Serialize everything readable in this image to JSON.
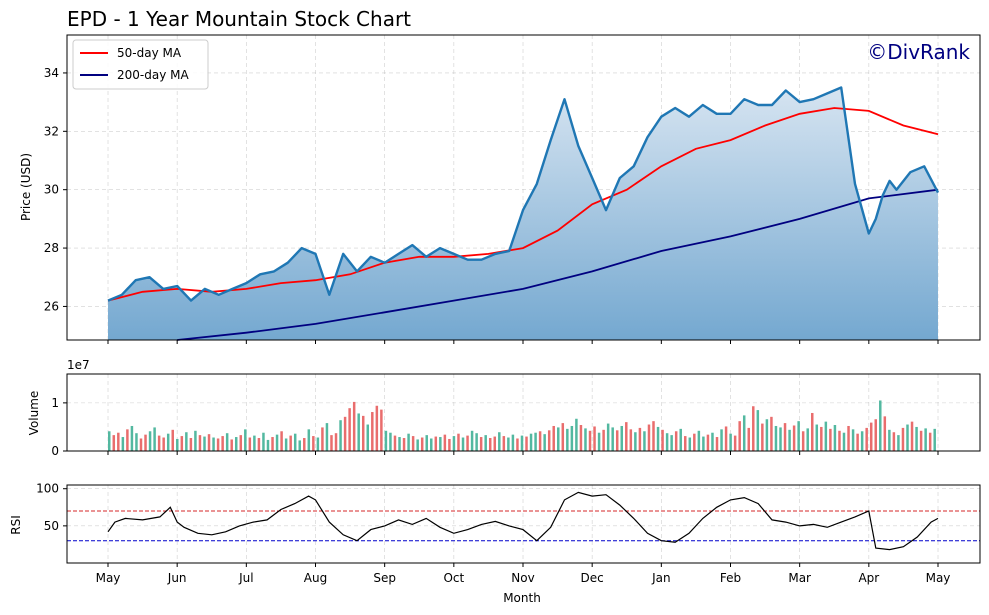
{
  "chart_data": {
    "type": "line",
    "title": "EPD - 1 Year Mountain Stock Chart",
    "watermark": "©DivRank",
    "xlabel": "Month",
    "x_ticks": [
      "May",
      "Jun",
      "Jul",
      "Aug",
      "Sep",
      "Oct",
      "Nov",
      "Dec",
      "Jan",
      "Feb",
      "Mar",
      "Apr",
      "May"
    ],
    "price_panel": {
      "ylabel": "Price (USD)",
      "ylim": [
        24.85,
        35.3
      ],
      "yticks": [
        "26",
        "28",
        "30",
        "32",
        "34"
      ],
      "grid": true,
      "legend_position": "top-left",
      "price_color": "#1f77b4",
      "fill_top_color": "#d6e4f1",
      "fill_bottom_color": "#74a8d0",
      "price_series": {
        "x": [
          0,
          0.2,
          0.4,
          0.6,
          0.8,
          1.0,
          1.2,
          1.4,
          1.6,
          1.8,
          2.0,
          2.2,
          2.4,
          2.6,
          2.8,
          3.0,
          3.2,
          3.4,
          3.6,
          3.8,
          4.0,
          4.2,
          4.4,
          4.6,
          4.8,
          5.0,
          5.2,
          5.4,
          5.6,
          5.8,
          6.0,
          6.2,
          6.4,
          6.6,
          6.8,
          7.0,
          7.2,
          7.4,
          7.6,
          7.8,
          8.0,
          8.2,
          8.4,
          8.6,
          8.8,
          9.0,
          9.2,
          9.4,
          9.6,
          9.8,
          10.0,
          10.2,
          10.4,
          10.6,
          10.8,
          11.0,
          11.1,
          11.2,
          11.3,
          11.4,
          11.6,
          11.8,
          12.0
        ],
        "y": [
          26.2,
          26.4,
          26.9,
          27.0,
          26.6,
          26.7,
          26.2,
          26.6,
          26.4,
          26.6,
          26.8,
          27.1,
          27.2,
          27.5,
          28.0,
          27.8,
          26.4,
          27.8,
          27.2,
          27.7,
          27.5,
          27.8,
          28.1,
          27.7,
          28.0,
          27.8,
          27.6,
          27.6,
          27.8,
          27.9,
          29.3,
          30.2,
          31.7,
          33.1,
          31.5,
          30.4,
          29.3,
          30.4,
          30.8,
          31.8,
          32.5,
          32.8,
          32.5,
          32.9,
          32.6,
          32.6,
          33.1,
          32.9,
          32.9,
          33.4,
          33.0,
          33.1,
          33.3,
          33.5,
          30.2,
          28.5,
          29.0,
          29.8,
          30.3,
          30.0,
          30.6,
          30.8,
          29.9
        ]
      },
      "ma50": {
        "name": "50-day MA",
        "color": "#ff0000",
        "x": [
          0,
          0.5,
          1,
          1.5,
          2,
          2.5,
          3,
          3.5,
          4,
          4.5,
          5,
          5.5,
          6,
          6.5,
          7,
          7.5,
          8,
          8.5,
          9,
          9.5,
          10,
          10.5,
          11,
          11.5,
          12
        ],
        "y": [
          26.2,
          26.5,
          26.6,
          26.5,
          26.6,
          26.8,
          26.9,
          27.1,
          27.5,
          27.7,
          27.7,
          27.8,
          28.0,
          28.6,
          29.5,
          30.0,
          30.8,
          31.4,
          31.7,
          32.2,
          32.6,
          32.8,
          32.7,
          32.2,
          31.9
        ]
      },
      "ma200": {
        "name": "200-day MA",
        "color": "#000080",
        "x": [
          1,
          2,
          3,
          4,
          5,
          6,
          7,
          8,
          9,
          10,
          11,
          12
        ],
        "y": [
          24.85,
          25.1,
          25.4,
          25.8,
          26.2,
          26.6,
          27.2,
          27.9,
          28.4,
          29.0,
          29.7,
          30.0
        ]
      }
    },
    "volume_panel": {
      "ylabel": "Volume",
      "multiplier": "1e7",
      "ylim": [
        0,
        1.6
      ],
      "yticks": [
        "0",
        "1"
      ],
      "up_color": "#53b8a0",
      "down_color": "#e96d6d",
      "values": [
        0.41,
        0.33,
        0.38,
        0.29,
        0.45,
        0.52,
        0.37,
        0.26,
        0.34,
        0.41,
        0.49,
        0.32,
        0.28,
        0.36,
        0.44,
        0.25,
        0.31,
        0.39,
        0.27,
        0.42,
        0.33,
        0.3,
        0.35,
        0.28,
        0.26,
        0.31,
        0.37,
        0.24,
        0.29,
        0.33,
        0.45,
        0.28,
        0.32,
        0.27,
        0.38,
        0.23,
        0.29,
        0.34,
        0.41,
        0.26,
        0.32,
        0.36,
        0.22,
        0.27,
        0.45,
        0.31,
        0.28,
        0.49,
        0.58,
        0.33,
        0.37,
        0.64,
        0.71,
        0.89,
        1.02,
        0.78,
        0.73,
        0.55,
        0.81,
        0.94,
        0.86,
        0.42,
        0.38,
        0.32,
        0.29,
        0.27,
        0.36,
        0.31,
        0.24,
        0.28,
        0.33,
        0.26,
        0.3,
        0.29,
        0.34,
        0.25,
        0.31,
        0.36,
        0.28,
        0.32,
        0.42,
        0.37,
        0.29,
        0.33,
        0.27,
        0.3,
        0.39,
        0.31,
        0.28,
        0.34,
        0.26,
        0.32,
        0.3,
        0.36,
        0.38,
        0.41,
        0.35,
        0.43,
        0.52,
        0.49,
        0.58,
        0.46,
        0.52,
        0.67,
        0.54,
        0.47,
        0.42,
        0.51,
        0.38,
        0.44,
        0.57,
        0.49,
        0.43,
        0.52,
        0.6,
        0.45,
        0.39,
        0.48,
        0.41,
        0.55,
        0.62,
        0.5,
        0.44,
        0.37,
        0.33,
        0.41,
        0.46,
        0.31,
        0.28,
        0.36,
        0.42,
        0.3,
        0.34,
        0.38,
        0.29,
        0.45,
        0.51,
        0.36,
        0.32,
        0.62,
        0.74,
        0.48,
        0.93,
        0.85,
        0.57,
        0.66,
        0.71,
        0.52,
        0.49,
        0.58,
        0.44,
        0.53,
        0.62,
        0.41,
        0.47,
        0.79,
        0.55,
        0.5,
        0.61,
        0.46,
        0.54,
        0.42,
        0.38,
        0.52,
        0.45,
        0.36,
        0.41,
        0.48,
        0.59,
        0.66,
        1.05,
        0.72,
        0.44,
        0.39,
        0.33,
        0.48,
        0.55,
        0.61,
        0.5,
        0.42,
        0.47,
        0.38,
        0.46
      ],
      "colors": [
        "u",
        "d",
        "d",
        "u",
        "d",
        "u",
        "u",
        "d",
        "d",
        "u",
        "u",
        "d",
        "d",
        "u",
        "d",
        "u",
        "d",
        "u",
        "d",
        "u",
        "d",
        "u",
        "d",
        "u",
        "d",
        "d",
        "u",
        "d",
        "u",
        "d",
        "u",
        "d",
        "u",
        "d",
        "u",
        "u",
        "d",
        "u",
        "d",
        "u",
        "d",
        "u",
        "u",
        "d",
        "u",
        "d",
        "u",
        "d",
        "u",
        "d",
        "d",
        "u",
        "d",
        "d",
        "d",
        "u",
        "d",
        "u",
        "d",
        "d",
        "d",
        "u",
        "u",
        "d",
        "u",
        "d",
        "u",
        "d",
        "u",
        "d",
        "u",
        "u",
        "d",
        "u",
        "d",
        "d",
        "u",
        "d",
        "u",
        "d",
        "u",
        "u",
        "d",
        "u",
        "d",
        "d",
        "u",
        "d",
        "u",
        "u",
        "d",
        "u",
        "d",
        "u",
        "u",
        "d",
        "u",
        "d",
        "d",
        "u",
        "d",
        "u",
        "u",
        "u",
        "d",
        "u",
        "d",
        "d",
        "u",
        "d",
        "u",
        "u",
        "d",
        "u",
        "d",
        "d",
        "u",
        "d",
        "u",
        "d",
        "d",
        "u",
        "d",
        "u",
        "u",
        "d",
        "u",
        "d",
        "u",
        "d",
        "u",
        "u",
        "d",
        "u",
        "d",
        "u",
        "d",
        "u",
        "d",
        "d",
        "u",
        "d",
        "d",
        "u",
        "d",
        "u",
        "d",
        "u",
        "u",
        "d",
        "u",
        "d",
        "u",
        "d",
        "u",
        "d",
        "u",
        "d",
        "u",
        "d",
        "u",
        "d",
        "u",
        "d",
        "u",
        "d",
        "u",
        "d",
        "d",
        "d",
        "u",
        "d",
        "u",
        "d",
        "u",
        "d",
        "u",
        "d",
        "u",
        "d",
        "u",
        "d",
        "u"
      ]
    },
    "rsi_panel": {
      "ylabel": "RSI",
      "ylim": [
        0,
        105
      ],
      "yticks": [
        "50",
        "100"
      ],
      "overbought": 70,
      "oversold": 30,
      "overbought_color": "#d62728",
      "oversold_color": "#0000cc",
      "x": [
        0,
        0.1,
        0.25,
        0.5,
        0.75,
        0.9,
        1.0,
        1.1,
        1.3,
        1.5,
        1.7,
        1.9,
        2.1,
        2.3,
        2.5,
        2.7,
        2.9,
        3.0,
        3.2,
        3.4,
        3.6,
        3.8,
        4.0,
        4.2,
        4.4,
        4.6,
        4.8,
        5.0,
        5.2,
        5.4,
        5.6,
        5.8,
        6.0,
        6.2,
        6.4,
        6.6,
        6.8,
        7.0,
        7.2,
        7.4,
        7.6,
        7.8,
        8.0,
        8.2,
        8.4,
        8.6,
        8.8,
        9.0,
        9.2,
        9.4,
        9.6,
        9.8,
        10.0,
        10.2,
        10.4,
        10.6,
        10.8,
        11.0,
        11.1,
        11.3,
        11.5,
        11.7,
        11.9,
        12.0
      ],
      "values": [
        42,
        55,
        60,
        58,
        62,
        75,
        55,
        48,
        40,
        38,
        42,
        50,
        55,
        58,
        72,
        80,
        90,
        85,
        55,
        38,
        30,
        45,
        50,
        58,
        52,
        60,
        48,
        40,
        45,
        52,
        56,
        50,
        45,
        30,
        48,
        85,
        95,
        90,
        92,
        78,
        60,
        40,
        30,
        28,
        40,
        60,
        75,
        85,
        88,
        80,
        58,
        55,
        50,
        52,
        48,
        55,
        62,
        70,
        20,
        18,
        22,
        35,
        55,
        60
      ]
    }
  }
}
